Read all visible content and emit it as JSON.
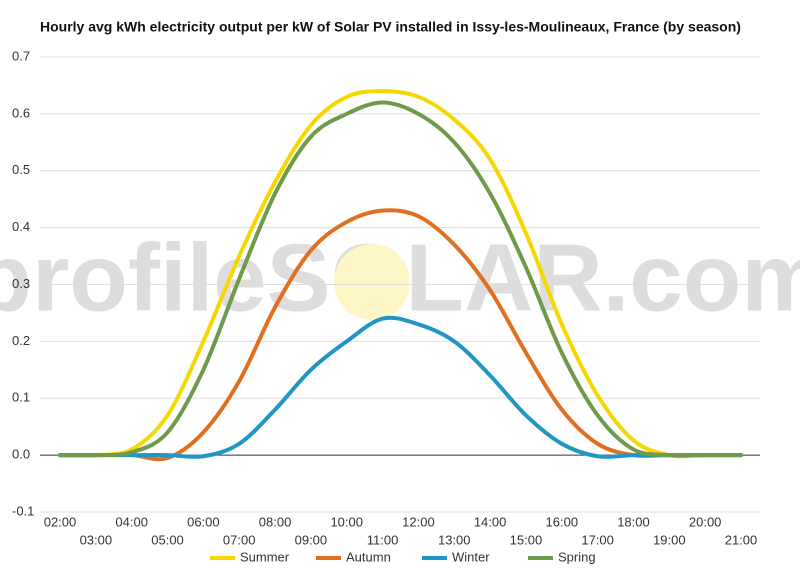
{
  "chart_data": {
    "type": "line",
    "title": "Hourly avg kWh electricity output per kW of Solar PV installed in Issy-les-Moulineaux, France (by season)",
    "watermark": "profileSOLAR.com",
    "categories": [
      "02:00",
      "03:00",
      "04:00",
      "05:00",
      "06:00",
      "07:00",
      "08:00",
      "09:00",
      "10:00",
      "11:00",
      "12:00",
      "13:00",
      "14:00",
      "15:00",
      "16:00",
      "17:00",
      "18:00",
      "19:00",
      "20:00",
      "21:00"
    ],
    "series": [
      {
        "name": "Summer",
        "color": "#f5d800",
        "values": [
          0,
          0,
          0.01,
          0.07,
          0.2,
          0.35,
          0.48,
          0.58,
          0.63,
          0.64,
          0.63,
          0.59,
          0.52,
          0.39,
          0.23,
          0.105,
          0.026,
          0,
          0,
          0
        ]
      },
      {
        "name": "Autumn",
        "color": "#e07020",
        "values": [
          0,
          0,
          0,
          -0.005,
          0.04,
          0.13,
          0.26,
          0.36,
          0.41,
          0.43,
          0.42,
          0.37,
          0.29,
          0.18,
          0.08,
          0.02,
          0,
          0,
          0,
          0
        ]
      },
      {
        "name": "Winter",
        "color": "#2196c4",
        "values": [
          0,
          0,
          0,
          0,
          -0.002,
          0.02,
          0.08,
          0.15,
          0.2,
          0.24,
          0.23,
          0.2,
          0.14,
          0.07,
          0.02,
          -0.002,
          0,
          0,
          0,
          0
        ]
      },
      {
        "name": "Spring",
        "color": "#6e9a4a",
        "values": [
          0,
          0,
          0.005,
          0.04,
          0.15,
          0.31,
          0.46,
          0.56,
          0.6,
          0.62,
          0.6,
          0.55,
          0.46,
          0.33,
          0.18,
          0.07,
          0.01,
          0,
          0,
          0
        ]
      }
    ],
    "ylim": [
      -0.1,
      0.7
    ],
    "yticks": [
      -0.1,
      {
        "value": 0,
        "label": "0.0"
      },
      0.1,
      0.2,
      0.3,
      0.4,
      0.5,
      0.6,
      0.7
    ],
    "grid": true,
    "legend": "bottom"
  }
}
